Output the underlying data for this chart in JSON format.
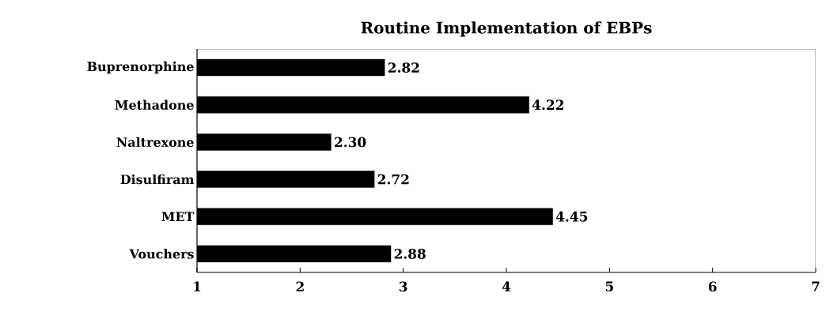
{
  "chart_data": {
    "type": "bar",
    "orientation": "horizontal",
    "title": "Routine Implementation of EBPs",
    "categories": [
      "Buprenorphine",
      "Methadone",
      "Naltrexone",
      "Disulfiram",
      "MET",
      "Vouchers"
    ],
    "values": [
      2.82,
      4.22,
      2.3,
      2.72,
      4.45,
      2.88
    ],
    "value_labels": [
      "2.82",
      "4.22",
      "2.30",
      "2.72",
      "4.45",
      "2.88"
    ],
    "color": "#000000",
    "xlim": [
      1,
      7
    ],
    "xticks": [
      1,
      2,
      3,
      4,
      5,
      6,
      7
    ],
    "grid": false
  }
}
